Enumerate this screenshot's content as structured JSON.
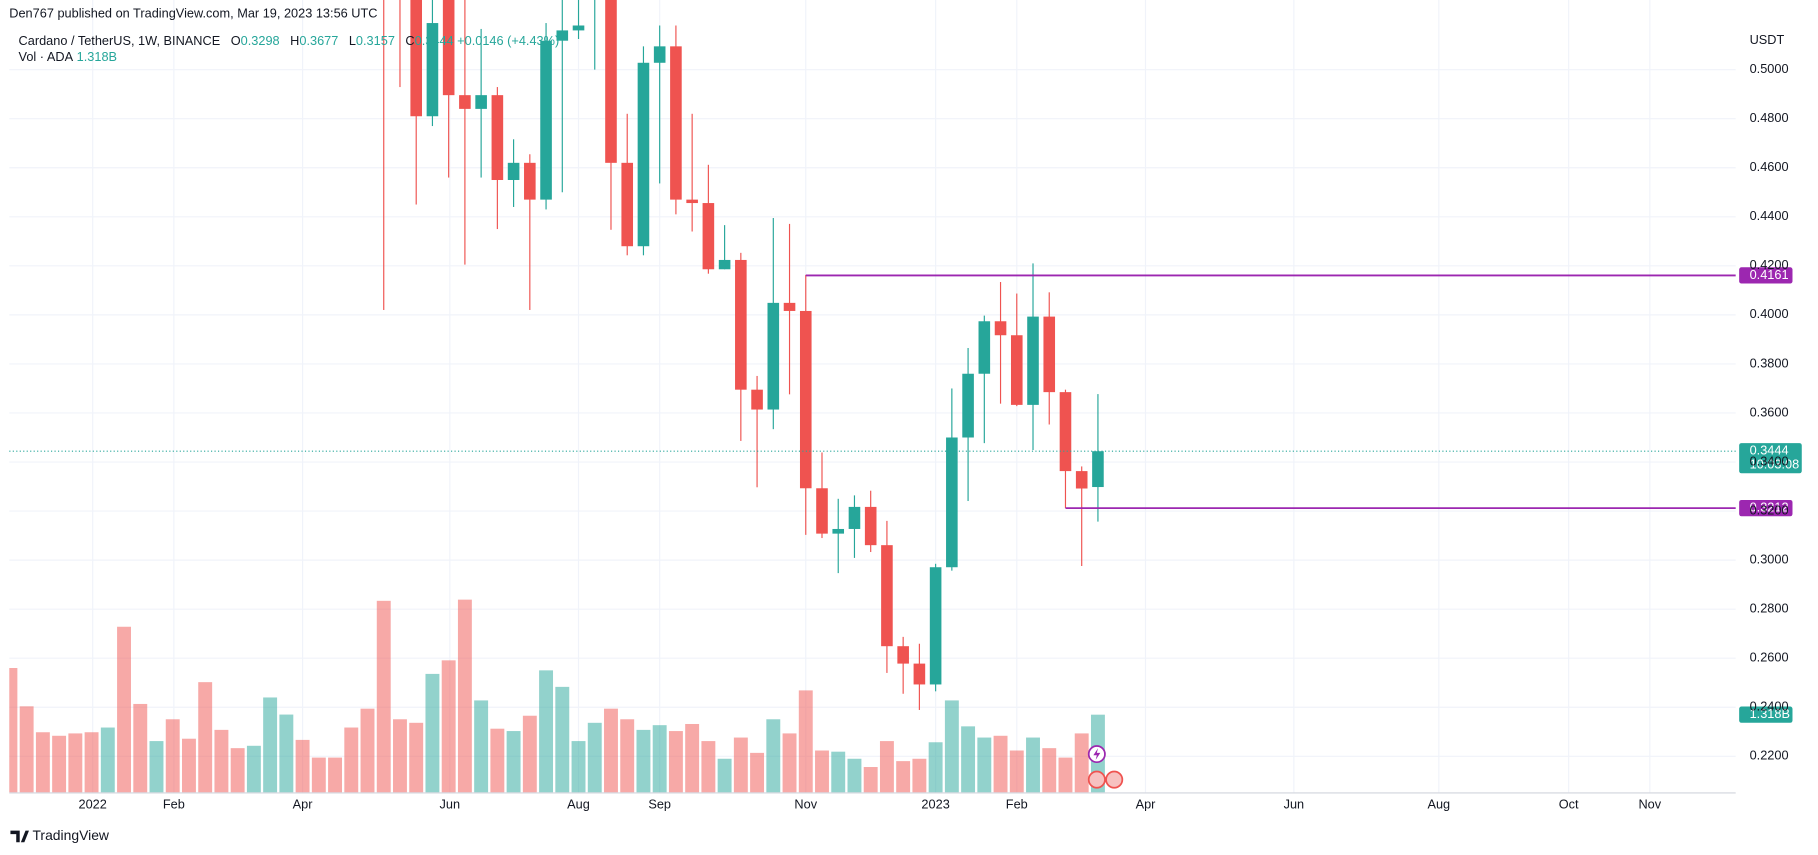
{
  "header": "Den767 published on TradingView.com, Mar 19, 2023 13:56 UTC",
  "footer": "TradingView",
  "chart_data": {
    "type": "candlestick",
    "symbol": "Cardano / TetherUS, 1W, BINANCE",
    "ohlc_letters": [
      "O",
      "H",
      "L",
      "C"
    ],
    "change": "+0.0146 (+4.43%)",
    "volume_title": "Vol · ADA",
    "volume_label": "1.318B",
    "currency": "USDT",
    "countdown": "10:03:08",
    "up_color": "#26a69a",
    "down_color": "#ef5350",
    "level_color": "#9c27b0",
    "grid": true,
    "ylim": [
      0.2053,
      0.5284
    ],
    "yticks": [
      {
        "value": 0.22,
        "label": "0.2200"
      },
      {
        "value": 0.24,
        "label": "0.2400"
      },
      {
        "value": 0.26,
        "label": "0.2600"
      },
      {
        "value": 0.28,
        "label": "0.2800"
      },
      {
        "value": 0.3,
        "label": "0.3000"
      },
      {
        "value": 0.32,
        "label": "0.3200"
      },
      {
        "value": 0.34,
        "label": "0.3400"
      },
      {
        "value": 0.36,
        "label": "0.3600"
      },
      {
        "value": 0.38,
        "label": "0.3800"
      },
      {
        "value": 0.4,
        "label": "0.4000"
      },
      {
        "value": 0.42,
        "label": "0.4200"
      },
      {
        "value": 0.44,
        "label": "0.4400"
      },
      {
        "value": 0.46,
        "label": "0.4600"
      },
      {
        "value": 0.48,
        "label": "0.4800"
      },
      {
        "value": 0.5,
        "label": "0.5000"
      }
    ],
    "xlim": [
      -0.07,
      106.29
    ],
    "xticks": [
      {
        "value": 5.07,
        "label": "2022"
      },
      {
        "value": 10.07,
        "label": "Feb"
      },
      {
        "value": 18.0,
        "label": "Apr"
      },
      {
        "value": 27.07,
        "label": "Jun"
      },
      {
        "value": 35.0,
        "label": "Aug"
      },
      {
        "value": 40.0,
        "label": "Sep"
      },
      {
        "value": 49.0,
        "label": "Nov"
      },
      {
        "value": 57.0,
        "label": "2023"
      },
      {
        "value": 62.0,
        "label": "Feb"
      },
      {
        "value": 69.93,
        "label": "Apr"
      },
      {
        "value": 79.07,
        "label": "Jun"
      },
      {
        "value": 88.0,
        "label": "Aug"
      },
      {
        "value": 96.0,
        "label": "Oct"
      },
      {
        "value": 101.0,
        "label": "Nov"
      }
    ],
    "levels": [
      0.4161,
      0.3212
    ],
    "open": [
      null,
      null,
      null,
      null,
      null,
      null,
      null,
      null,
      null,
      null,
      null,
      null,
      null,
      null,
      null,
      null,
      null,
      null,
      null,
      null,
      null,
      null,
      null,
      null,
      null,
      null,
      0.481,
      null,
      0.4896,
      0.484,
      0.4896,
      0.455,
      0.462,
      0.447,
      0.5118,
      0.516,
      null,
      null,
      0.462,
      0.428,
      0.5028,
      0.5095,
      0.447,
      0.4456,
      0.4186,
      0.4224,
      0.3695,
      0.3614,
      0.4049,
      0.4016,
      0.3293,
      0.3108,
      0.3127,
      0.3217,
      0.3061,
      0.2649,
      0.2578,
      0.2493,
      0.2971,
      0.35,
      0.376,
      0.3974,
      0.3917,
      0.3633,
      0.3993,
      0.3685,
      0.3363,
      0.3298
    ],
    "high": [
      null,
      null,
      null,
      null,
      null,
      null,
      null,
      null,
      null,
      null,
      null,
      null,
      null,
      null,
      null,
      null,
      null,
      null,
      null,
      null,
      null,
      null,
      null,
      null,
      null,
      null,
      null,
      null,
      null,
      0.5166,
      0.4929,
      0.4716,
      0.4655,
      0.519,
      null,
      null,
      null,
      null,
      0.482,
      0.5095,
      0.518,
      0.518,
      0.482,
      0.4612,
      0.4366,
      0.4253,
      0.3751,
      0.4395,
      0.4371,
      0.4163,
      0.3439,
      0.325,
      0.3264,
      0.3283,
      0.316,
      0.2687,
      0.2659,
      0.2985,
      0.37,
      0.3865,
      0.3997,
      0.4134,
      0.4087,
      0.421,
      0.4092,
      0.3695,
      0.3382,
      0.3677
    ],
    "low": [
      null,
      null,
      null,
      null,
      null,
      null,
      null,
      null,
      null,
      null,
      null,
      null,
      null,
      null,
      null,
      null,
      null,
      null,
      null,
      null,
      null,
      null,
      null,
      0.402,
      0.4929,
      0.445,
      0.477,
      0.456,
      0.4205,
      0.456,
      0.435,
      0.444,
      0.402,
      0.443,
      0.45,
      0.5125,
      0.5,
      0.4347,
      0.4243,
      0.4243,
      0.4536,
      0.441,
      0.434,
      0.4168,
      0.4186,
      0.3486,
      0.3297,
      0.3534,
      0.3676,
      0.3103,
      0.309,
      0.2947,
      0.3009,
      0.3033,
      0.254,
      0.2455,
      0.2389,
      0.2465,
      0.2957,
      0.3241,
      0.3477,
      0.3638,
      0.3628,
      0.3449,
      0.3553,
      0.3212,
      0.2976,
      0.3157
    ],
    "close": [
      null,
      null,
      null,
      null,
      null,
      null,
      null,
      null,
      null,
      null,
      null,
      null,
      null,
      null,
      null,
      null,
      null,
      null,
      null,
      null,
      null,
      null,
      null,
      null,
      null,
      0.481,
      0.519,
      0.4896,
      0.484,
      0.4896,
      0.455,
      0.462,
      0.447,
      0.5118,
      0.516,
      0.518,
      null,
      0.462,
      0.428,
      0.5028,
      0.5095,
      0.447,
      0.4456,
      0.4186,
      0.4224,
      0.3695,
      0.3614,
      0.4049,
      0.4016,
      0.3293,
      0.3108,
      0.3127,
      0.3217,
      0.3061,
      0.2649,
      0.2578,
      0.2493,
      0.2971,
      0.35,
      0.376,
      0.3974,
      0.3917,
      0.3633,
      0.3993,
      0.3685,
      0.3363,
      0.3292,
      0.3444
    ],
    "volume": [
      2.11,
      1.46,
      1.02,
      0.96,
      1.0,
      1.02,
      1.1,
      2.81,
      1.5,
      0.87,
      1.24,
      0.91,
      1.87,
      1.06,
      0.75,
      0.79,
      1.61,
      1.32,
      0.89,
      0.59,
      0.59,
      1.1,
      1.42,
      3.25,
      1.24,
      1.18,
      2.01,
      2.24,
      3.27,
      1.56,
      1.08,
      1.04,
      1.3,
      2.07,
      1.79,
      0.87,
      1.18,
      1.42,
      1.24,
      1.06,
      1.14,
      1.04,
      1.16,
      0.87,
      0.57,
      0.93,
      0.67,
      1.24,
      1.0,
      1.73,
      0.71,
      0.69,
      0.57,
      0.43,
      0.87,
      0.53,
      0.57,
      0.85,
      1.56,
      1.12,
      0.93,
      0.96,
      0.71,
      0.93,
      0.75,
      0.59,
      1.0,
      1.318
    ],
    "colors": [
      "#ef5350",
      "#ef5350",
      "#ef5350",
      "#ef5350",
      "#ef5350",
      "#ef5350",
      "#26a69a",
      "#ef5350",
      "#ef5350",
      "#26a69a",
      "#ef5350",
      "#ef5350",
      "#ef5350",
      "#ef5350",
      "#ef5350",
      "#26a69a",
      "#26a69a",
      "#26a69a",
      "#ef5350",
      "#ef5350",
      "#ef5350",
      "#ef5350",
      "#ef5350",
      "#ef5350",
      "#ef5350",
      "#ef5350",
      "#26a69a",
      "#ef5350",
      "#ef5350",
      "#26a69a",
      "#ef5350",
      "#26a69a",
      "#ef5350",
      "#26a69a",
      "#26a69a",
      "#26a69a",
      "#26a69a",
      "#ef5350",
      "#ef5350",
      "#26a69a",
      "#26a69a",
      "#ef5350",
      "#ef5350",
      "#ef5350",
      "#26a69a",
      "#ef5350",
      "#ef5350",
      "#26a69a",
      "#ef5350",
      "#ef5350",
      "#ef5350",
      "#26a69a",
      "#26a69a",
      "#ef5350",
      "#ef5350",
      "#ef5350",
      "#ef5350",
      "#26a69a",
      "#26a69a",
      "#26a69a",
      "#26a69a",
      "#ef5350",
      "#ef5350",
      "#26a69a",
      "#ef5350",
      "#ef5350",
      "#ef5350",
      "#26a69a"
    ]
  }
}
